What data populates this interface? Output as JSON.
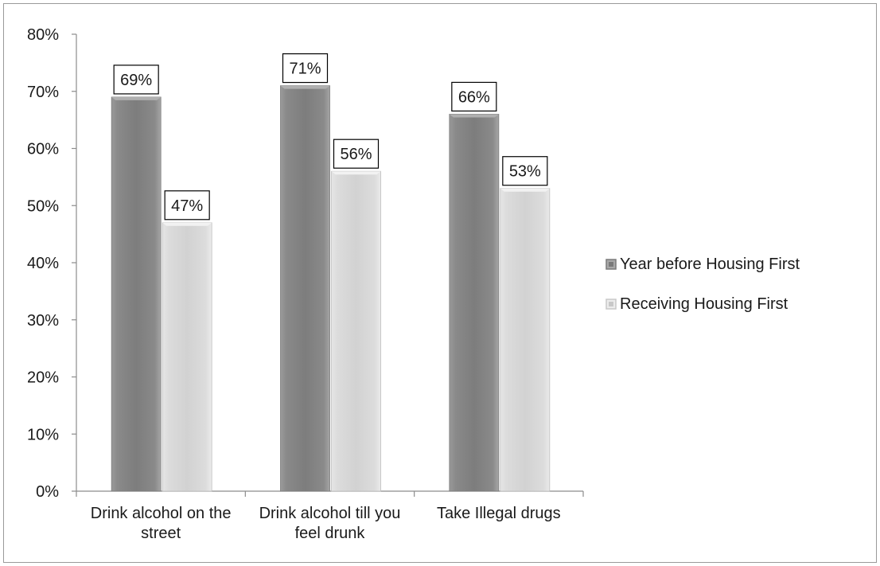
{
  "chart_data": {
    "type": "bar",
    "title": "",
    "xlabel": "",
    "ylabel": "",
    "ylim": [
      0,
      80
    ],
    "yticks": [
      "0%",
      "10%",
      "20%",
      "30%",
      "40%",
      "50%",
      "60%",
      "70%",
      "80%"
    ],
    "categories": [
      [
        "Drink alcohol on the",
        "street"
      ],
      [
        "Drink alcohol till you",
        "feel drunk"
      ],
      [
        "Take Illegal drugs"
      ]
    ],
    "series": [
      {
        "name": "Year before Housing First",
        "values": [
          69,
          71,
          66
        ],
        "labels": [
          "69%",
          "71%",
          "66%"
        ],
        "color": "#8c8c8c"
      },
      {
        "name": "Receiving Housing First",
        "values": [
          47,
          56,
          53
        ],
        "labels": [
          "47%",
          "56%",
          "53%"
        ],
        "color": "#d9d9d9"
      }
    ],
    "legend_position": "right",
    "grid": false
  }
}
